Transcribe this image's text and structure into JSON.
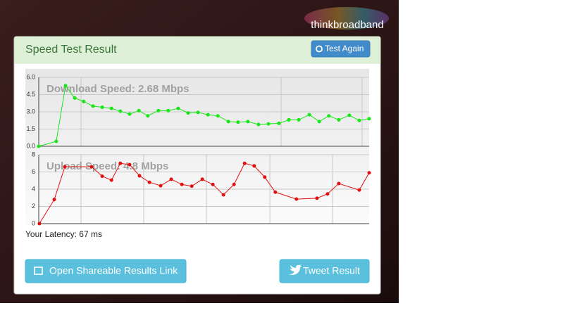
{
  "logo": "thinkbroadband",
  "header": {
    "title": "Speed Test Result",
    "button": "Test Again"
  },
  "chart_data": [
    {
      "type": "line",
      "title": "Download Speed: 2.68 Mbps",
      "color": "#19e619",
      "grid": true,
      "x": [
        0,
        5.3,
        8.1,
        10.9,
        13.6,
        16.4,
        19.2,
        22.0,
        24.7,
        27.5,
        30.3,
        33.0,
        36.2,
        39.2,
        42.2,
        45.2,
        48.2,
        51.2,
        54.2,
        57.4,
        60.3,
        63.3,
        66.5,
        69.5,
        72.7,
        75.7,
        78.7,
        81.9,
        84.9,
        87.8,
        90.8,
        94.0,
        97.0,
        100
      ],
      "values": [
        0,
        0.43,
        5.27,
        4.2,
        3.9,
        3.5,
        3.4,
        3.3,
        3.05,
        2.8,
        3.1,
        2.65,
        3.1,
        3.1,
        3.3,
        2.9,
        2.95,
        2.75,
        2.65,
        2.15,
        2.1,
        2.15,
        1.9,
        1.95,
        2.0,
        2.3,
        2.3,
        2.75,
        2.15,
        2.65,
        2.3,
        2.7,
        2.25,
        2.4
      ],
      "xlim": [
        0,
        100
      ],
      "ylim": [
        0,
        6
      ],
      "yticks": [
        {
          "value": 0,
          "label": "0.0"
        },
        {
          "value": 1.5,
          "label": "1.5"
        },
        {
          "value": 3,
          "label": "3.0"
        },
        {
          "value": 4.5,
          "label": "4.5"
        },
        {
          "value": 6,
          "label": "6.0"
        }
      ]
    },
    {
      "type": "line",
      "title": "Upload Speed: 4.8 Mbps",
      "color": "#e01010",
      "grid": true,
      "x": [
        0.2,
        4.7,
        7.9,
        16.0,
        19.2,
        22.0,
        24.7,
        27.5,
        30.5,
        33.5,
        36.9,
        40.1,
        43.3,
        46.3,
        49.5,
        52.7,
        55.9,
        59.1,
        62.3,
        65.2,
        68.4,
        71.6,
        78.0,
        84.2,
        87.4,
        90.8,
        97.0,
        100
      ],
      "values": [
        0,
        2.8,
        6.6,
        6.6,
        5.5,
        5.05,
        7.0,
        6.85,
        5.55,
        4.8,
        4.4,
        5.15,
        4.55,
        4.35,
        5.15,
        4.55,
        3.35,
        4.55,
        7.0,
        6.7,
        5.4,
        3.65,
        2.85,
        2.95,
        3.45,
        4.65,
        3.9,
        5.9
      ],
      "xlim": [
        0,
        100
      ],
      "ylim": [
        0,
        8
      ],
      "yticks": [
        0,
        2,
        4,
        6,
        8
      ]
    }
  ],
  "latency": "Your Latency: 67 ms",
  "buttons": [
    "Open Shareable Results Link",
    "Tweet Result"
  ]
}
